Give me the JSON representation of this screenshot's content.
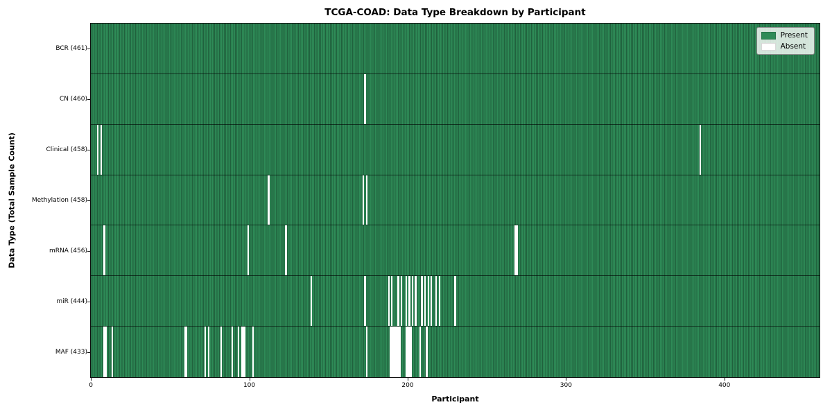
{
  "chart_data": {
    "type": "heatmap",
    "title": "TCGA-COAD: Data Type Breakdown by Participant",
    "xlabel": "Participant",
    "ylabel": "Data Type (Total Sample Count)",
    "x_ticks": [
      0,
      100,
      200,
      300,
      400
    ],
    "xlim": [
      -0.5,
      460.5
    ],
    "n_participants": 461,
    "grid": false,
    "legend": {
      "position": "upper right",
      "entries": [
        {
          "label": "Present",
          "color": "#2e8b57"
        },
        {
          "label": "Absent",
          "color": "#ffffff"
        }
      ]
    },
    "colors": {
      "present": "#2e8b57",
      "absent": "#ffffff",
      "cell_edge": "rgba(0,0,0,0.30)",
      "row_separator": "rgba(0,0,0,0.6)"
    },
    "rows": [
      {
        "data_type": "BCR",
        "label": "BCR (461)",
        "total": 461,
        "absent_participants": []
      },
      {
        "data_type": "CN",
        "label": "CN (460)",
        "total": 460,
        "absent_participants": [
          173
        ]
      },
      {
        "data_type": "Clinical",
        "label": "Clinical (458)",
        "total": 458,
        "absent_participants": [
          4,
          6,
          385
        ]
      },
      {
        "data_type": "Methylation",
        "label": "Methylation (458)",
        "total": 458,
        "absent_participants": [
          112,
          172,
          174
        ]
      },
      {
        "data_type": "mRNA",
        "label": "mRNA (456)",
        "total": 456,
        "absent_participants": [
          8,
          99,
          123,
          268,
          269
        ]
      },
      {
        "data_type": "miR",
        "label": "miR (444)",
        "total": 444,
        "absent_participants": [
          139,
          173,
          188,
          190,
          194,
          196,
          199,
          201,
          203,
          205,
          209,
          211,
          213,
          215,
          218,
          220,
          230
        ]
      },
      {
        "data_type": "MAF",
        "label": "MAF (433)",
        "total": 433,
        "absent_participants": [
          8,
          9,
          13,
          59,
          60,
          72,
          74,
          82,
          89,
          93,
          95,
          96,
          97,
          102,
          174,
          189,
          190,
          191,
          192,
          193,
          194,
          195,
          199,
          200,
          201,
          202,
          208,
          212
        ]
      }
    ]
  }
}
